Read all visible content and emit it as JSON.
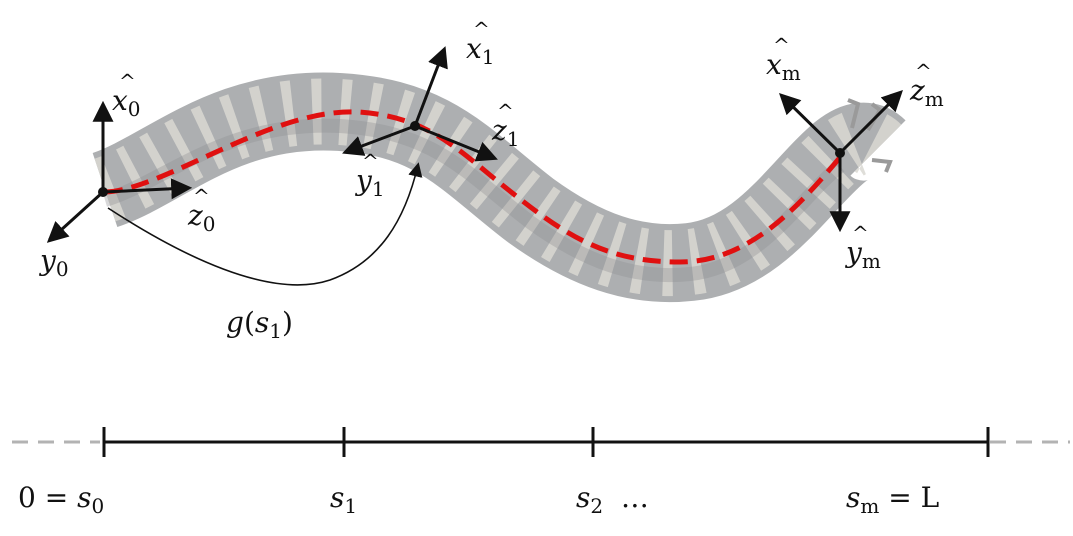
{
  "colors": {
    "backbone": "#e01010",
    "axis": "#111111",
    "robot_body": "#a9abad",
    "robot_band": "#d9d8d2",
    "dashed_extension": "#b3b3b3"
  },
  "frames": {
    "base": {
      "x_label": "x",
      "x_sub": "0",
      "y_label": "y",
      "y_sub": "0",
      "z_label": "z",
      "z_sub": "0"
    },
    "mid": {
      "x_label": "x",
      "x_sub": "1",
      "y_label": "y",
      "y_sub": "1",
      "z_label": "z",
      "z_sub": "1"
    },
    "tip": {
      "x_label": "x",
      "x_sub": "m",
      "y_label": "y",
      "y_sub": "m",
      "z_label": "z",
      "z_sub": "m"
    }
  },
  "transform_label": {
    "func": "g",
    "open": "(",
    "arg": "s",
    "arg_sub": "1",
    "close": ")"
  },
  "arclength_axis": {
    "tick0": {
      "prefix": "0 = ",
      "sym": "s",
      "sub": "0"
    },
    "tick1": {
      "sym": "s",
      "sub": "1"
    },
    "tick2": {
      "sym": "s",
      "sub": "2",
      "suffix": "  …"
    },
    "tick3": {
      "sym": "s",
      "sub": "m",
      "suffix": " = L"
    }
  }
}
